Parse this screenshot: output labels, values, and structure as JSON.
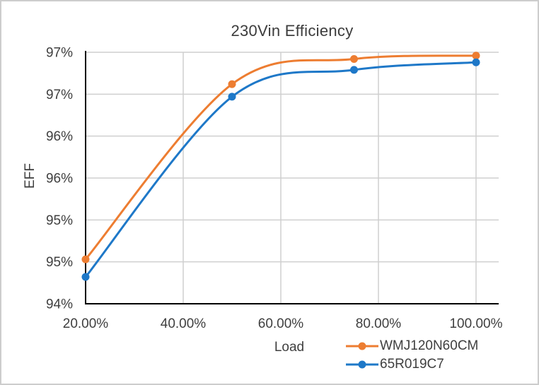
{
  "window": {
    "background": "#ffffff",
    "border_color": "#cdcdcd"
  },
  "colors": {
    "gridline": "#cfcfcf",
    "axis_line": "#000000",
    "text": "#3f3f3f"
  },
  "chart_data": {
    "type": "line",
    "title": "230Vin Efficiency",
    "xlabel": "Load",
    "ylabel": "EFF",
    "smoothed": true,
    "marker": "circle",
    "grid": true,
    "legend_position": "bottom-right",
    "xlim": [
      20,
      104.6
    ],
    "ylim": [
      94,
      97
    ],
    "x": [
      20,
      50,
      75,
      100
    ],
    "series": [
      {
        "name": "WMJ120N60CM",
        "color": "#ED7D31",
        "values": [
          94.53,
          96.62,
          96.92,
          96.96
        ]
      },
      {
        "name": "65R019C7",
        "color": "#1E78C8",
        "values": [
          94.32,
          96.47,
          96.79,
          96.88
        ]
      }
    ],
    "x_ticks": [
      {
        "value": 20,
        "label": "20.00%"
      },
      {
        "value": 40,
        "label": "40.00%"
      },
      {
        "value": 60,
        "label": "60.00%"
      },
      {
        "value": 80,
        "label": "80.00%"
      },
      {
        "value": 100,
        "label": "100.00%"
      }
    ],
    "y_ticks": [
      {
        "value": 94,
        "label": "94%"
      },
      {
        "value": 94.5,
        "label": "95%"
      },
      {
        "value": 95,
        "label": "95%"
      },
      {
        "value": 95.5,
        "label": "96%"
      },
      {
        "value": 96,
        "label": "96%"
      },
      {
        "value": 96.5,
        "label": "97%"
      },
      {
        "value": 97,
        "label": "97%"
      }
    ]
  }
}
